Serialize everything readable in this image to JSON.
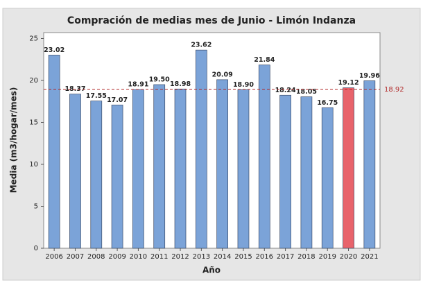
{
  "chart_data": {
    "type": "bar",
    "title": "Compración de medias mes de Junio - Limón Indanza",
    "x_label": "Año",
    "y_label": "Media (m3/hogar/mes)",
    "categories": [
      "2006",
      "2007",
      "2008",
      "2009",
      "2010",
      "2011",
      "2012",
      "2013",
      "2014",
      "2015",
      "2016",
      "2017",
      "2018",
      "2019",
      "2020",
      "2021"
    ],
    "values": [
      23.02,
      18.37,
      17.55,
      17.07,
      18.91,
      19.5,
      18.98,
      23.62,
      20.09,
      18.9,
      21.84,
      18.24,
      18.05,
      16.75,
      19.12,
      19.96
    ],
    "value_labels": [
      "23.02",
      "18.37",
      "17.55",
      "17.07",
      "18.91",
      "19.50",
      "18.98",
      "23.62",
      "20.09",
      "18.90",
      "21.84",
      "18.24",
      "18.05",
      "16.75",
      "19.12",
      "19.96"
    ],
    "colors": [
      "#7ba3d8",
      "#7ba3d8",
      "#7ba3d8",
      "#7ba3d8",
      "#7ba3d8",
      "#7ba3d8",
      "#7ba3d8",
      "#7ba3d8",
      "#7ba3d8",
      "#7ba3d8",
      "#7ba3d8",
      "#7ba3d8",
      "#7ba3d8",
      "#7ba3d8",
      "#e8636b",
      "#7ba3d8"
    ],
    "reference_line": {
      "value": 18.92,
      "color": "#b22a2a"
    },
    "ylim": [
      0,
      25.7
    ],
    "yticks": [
      0,
      5,
      10,
      15,
      20,
      25
    ]
  }
}
